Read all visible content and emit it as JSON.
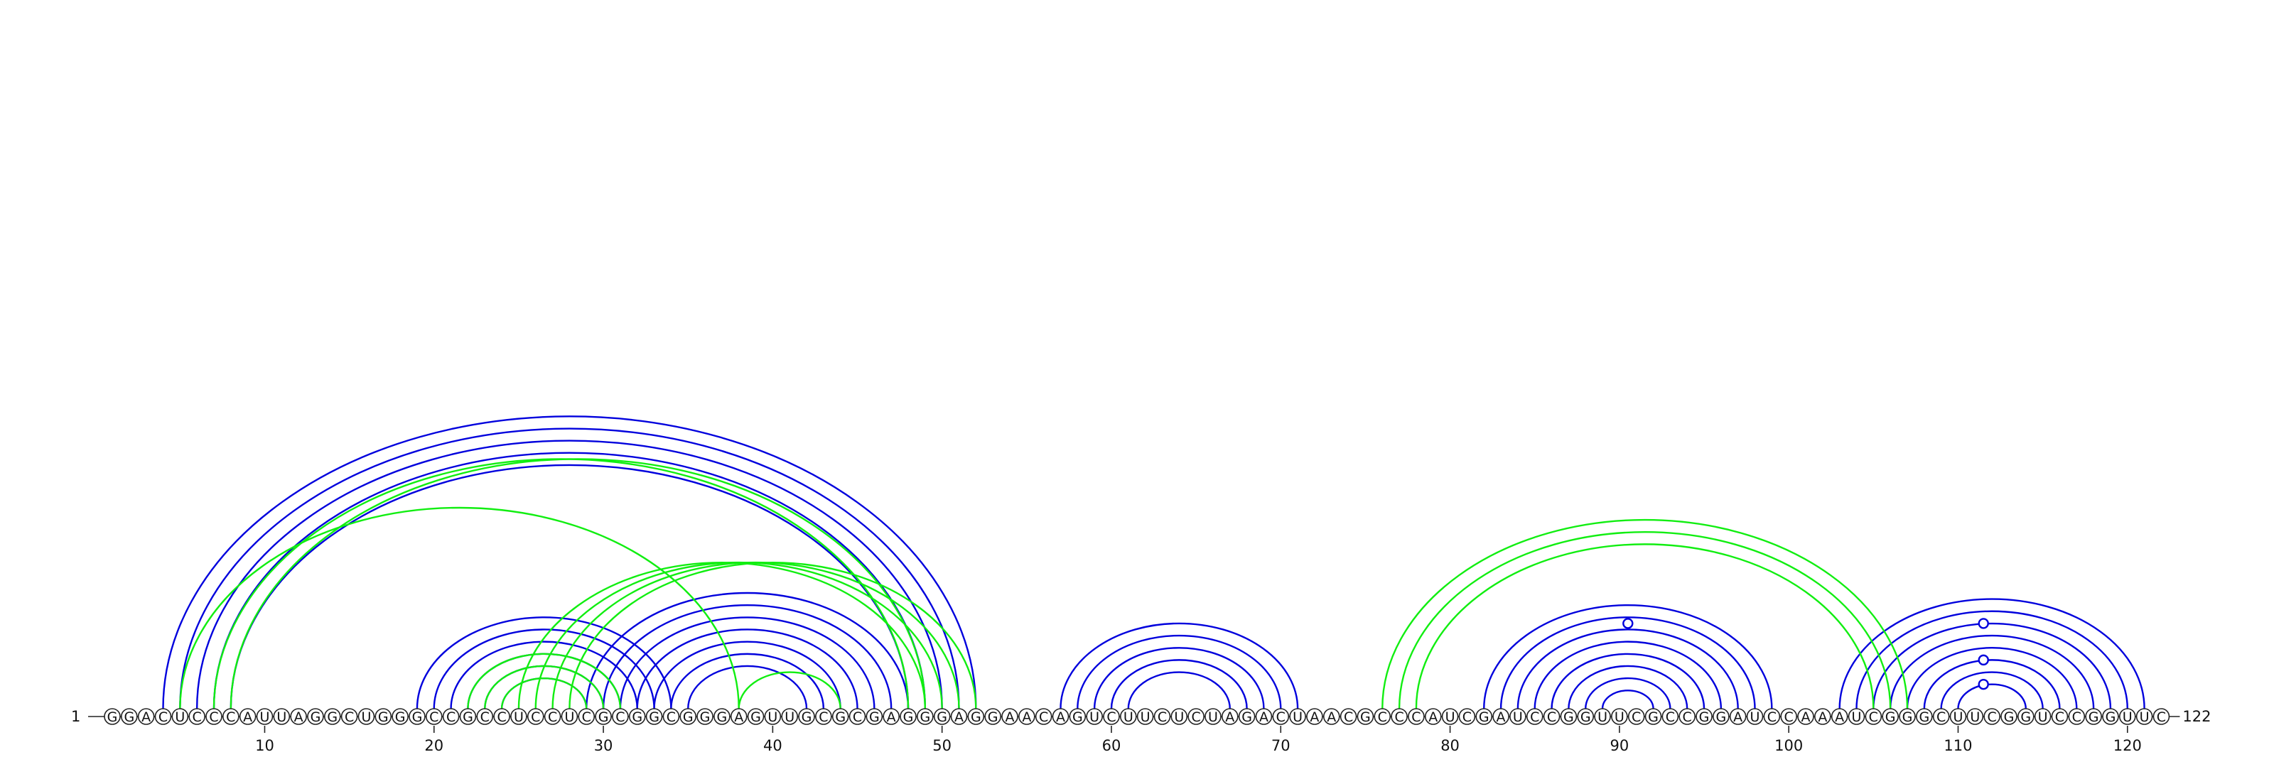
{
  "sequence": "GGACUCCCAUUAGGCUGGGCCGCCUCCUCGCGGCGGGAGUUGCGCGAGGGAGGAACAGUCUUCUCUAGACUAACGCCCAUCGAUCCGGUUCGCCGGAUCCAAAUCGGGCUUCGGUCCGGUUC",
  "start_label": "1",
  "end_label": "122",
  "ticks": [
    {
      "position": 10,
      "label": "10"
    },
    {
      "position": 20,
      "label": "20"
    },
    {
      "position": 30,
      "label": "30"
    },
    {
      "position": 40,
      "label": "40"
    },
    {
      "position": 50,
      "label": "50"
    },
    {
      "position": 60,
      "label": "60"
    },
    {
      "position": 70,
      "label": "70"
    },
    {
      "position": 80,
      "label": "80"
    },
    {
      "position": 90,
      "label": "90"
    },
    {
      "position": 100,
      "label": "100"
    },
    {
      "position": 110,
      "label": "110"
    },
    {
      "position": 120,
      "label": "120"
    }
  ],
  "colors": {
    "structure_a": "#0000dd",
    "structure_b": "#11ee11"
  },
  "arcs": [
    {
      "color": "structure_a",
      "pairs": [
        [
          4,
          52
        ],
        [
          5,
          51
        ],
        [
          6,
          50
        ],
        [
          7,
          49
        ],
        [
          8,
          48
        ]
      ]
    },
    {
      "color": "structure_a",
      "pairs": [
        [
          19,
          34
        ],
        [
          20,
          33
        ],
        [
          21,
          32
        ],
        [
          22,
          31
        ],
        [
          23,
          30
        ],
        [
          24,
          29
        ]
      ]
    },
    {
      "color": "structure_a",
      "pairs": [
        [
          29,
          48
        ],
        [
          30,
          47
        ],
        [
          31,
          46
        ],
        [
          32,
          45
        ],
        [
          33,
          44
        ],
        [
          34,
          43
        ],
        [
          35,
          42
        ]
      ]
    },
    {
      "color": "structure_a",
      "pairs": [
        [
          57,
          71
        ],
        [
          58,
          70
        ],
        [
          59,
          69
        ],
        [
          60,
          68
        ],
        [
          61,
          67
        ]
      ]
    },
    {
      "color": "structure_a",
      "pairs": [
        [
          82,
          99
        ],
        [
          83,
          98
        ],
        [
          84,
          97
        ],
        [
          85,
          96
        ],
        [
          86,
          95
        ],
        [
          87,
          94
        ],
        [
          88,
          93
        ],
        [
          89,
          92
        ]
      ]
    },
    {
      "color": "structure_a",
      "pairs": [
        [
          103,
          121
        ],
        [
          104,
          120
        ],
        [
          105,
          119
        ],
        [
          106,
          118
        ],
        [
          107,
          117
        ],
        [
          108,
          116
        ],
        [
          109,
          115
        ],
        [
          110,
          114
        ]
      ]
    },
    {
      "color": "structure_b",
      "pairs": [
        [
          5,
          38
        ]
      ]
    },
    {
      "color": "structure_b",
      "pairs": [
        [
          7,
          48
        ],
        [
          8,
          49
        ]
      ]
    },
    {
      "color": "structure_b",
      "pairs": [
        [
          22,
          31
        ],
        [
          23,
          30
        ],
        [
          24,
          29
        ]
      ]
    },
    {
      "color": "structure_b",
      "pairs": [
        [
          25,
          49
        ],
        [
          26,
          50
        ],
        [
          27,
          51
        ],
        [
          28,
          52
        ]
      ]
    },
    {
      "color": "structure_b",
      "pairs": [
        [
          38,
          44
        ]
      ]
    },
    {
      "color": "structure_b",
      "pairs": [
        [
          76,
          107
        ],
        [
          77,
          106
        ],
        [
          78,
          105
        ]
      ]
    }
  ],
  "markers": [
    {
      "color": "structure_a",
      "position": 90.5,
      "arc_index": 7
    },
    {
      "color": "structure_a",
      "position": 111.5,
      "arc_index": 2
    },
    {
      "color": "structure_a",
      "position": 111.5,
      "arc_index": 4
    },
    {
      "color": "structure_a",
      "position": 111.5,
      "arc_index": 7
    }
  ]
}
